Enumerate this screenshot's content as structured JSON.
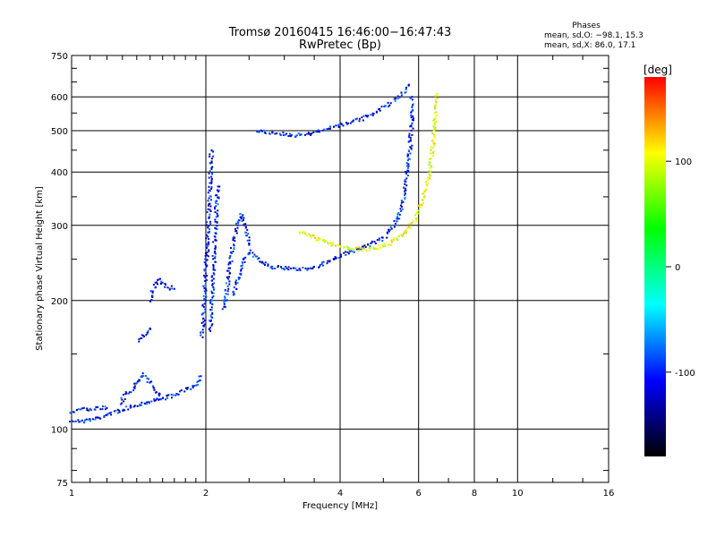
{
  "chart_data": {
    "type": "scatter",
    "title": "Tromsø 20160415 16:46:00−16:47:43",
    "subtitle": "RwPretec (Bp)",
    "xlabel": "Frequency [MHz]",
    "ylabel": "Stationary phase Virtual Height [km]",
    "x_scale": "log",
    "y_scale": "log",
    "xlim": [
      1,
      16
    ],
    "ylim": [
      75,
      750
    ],
    "x_ticks": [
      1,
      2,
      4,
      6,
      8,
      10,
      16
    ],
    "y_ticks": [
      75,
      100,
      200,
      300,
      400,
      500,
      600,
      750
    ],
    "grid": true,
    "phases_box": {
      "heading": "Phases",
      "line_o": "mean, sd,O: −98.1, 15.3",
      "line_x": "mean, sd,X: 86.0, 17.1"
    },
    "colorbar": {
      "label": "[deg]",
      "range": [
        -180,
        180
      ],
      "ticks": [
        100,
        0,
        -100
      ],
      "colors": [
        "#ff0000",
        "#ffff00",
        "#00ff00",
        "#00ffff",
        "#0000ff",
        "#000000"
      ]
    },
    "series": [
      {
        "phase_deg": -100,
        "segments": [
          [
            [
              1.0,
              105
            ],
            [
              1.05,
              104
            ],
            [
              1.1,
              105
            ],
            [
              1.15,
              106
            ],
            [
              1.2,
              108
            ],
            [
              1.3,
              111
            ],
            [
              1.4,
              114
            ],
            [
              1.5,
              116
            ],
            [
              1.6,
              118
            ],
            [
              1.7,
              120
            ],
            [
              1.8,
              123
            ],
            [
              1.9,
              127
            ],
            [
              1.95,
              133
            ]
          ],
          [
            [
              1.0,
              110
            ],
            [
              1.05,
              111
            ],
            [
              1.1,
              111
            ],
            [
              1.15,
              112
            ],
            [
              1.2,
              112
            ]
          ],
          [
            [
              1.28,
              115
            ],
            [
              1.32,
              120
            ],
            [
              1.38,
              125
            ],
            [
              1.42,
              130
            ],
            [
              1.45,
              135
            ],
            [
              1.5,
              128
            ],
            [
              1.55,
              122
            ],
            [
              1.6,
              118
            ]
          ],
          [
            [
              1.42,
              160
            ],
            [
              1.45,
              165
            ],
            [
              1.48,
              170
            ],
            [
              1.5,
              172
            ]
          ],
          [
            [
              1.5,
              200
            ],
            [
              1.52,
              212
            ],
            [
              1.55,
              220
            ],
            [
              1.58,
              225
            ],
            [
              1.6,
              218
            ],
            [
              1.65,
              215
            ],
            [
              1.7,
              213
            ]
          ],
          [
            [
              1.96,
              165
            ],
            [
              1.98,
              190
            ],
            [
              2.0,
              230
            ],
            [
              2.02,
              280
            ],
            [
              2.04,
              340
            ],
            [
              2.05,
              400
            ],
            [
              2.06,
              450
            ]
          ],
          [
            [
              2.05,
              170
            ],
            [
              2.07,
              210
            ],
            [
              2.09,
              260
            ],
            [
              2.11,
              320
            ],
            [
              2.13,
              370
            ]
          ],
          [
            [
              2.2,
              190
            ],
            [
              2.25,
              230
            ],
            [
              2.3,
              270
            ],
            [
              2.35,
              300
            ],
            [
              2.4,
              320
            ],
            [
              2.45,
              300
            ],
            [
              2.5,
              270
            ]
          ],
          [
            [
              2.3,
              205
            ],
            [
              2.4,
              240
            ],
            [
              2.5,
              260
            ],
            [
              2.6,
              250
            ],
            [
              2.7,
              245
            ],
            [
              2.8,
              240
            ],
            [
              3.0,
              238
            ],
            [
              3.2,
              237
            ],
            [
              3.4,
              238
            ],
            [
              3.6,
              242
            ],
            [
              3.8,
              248
            ],
            [
              4.0,
              255
            ],
            [
              4.3,
              262
            ],
            [
              4.6,
              268
            ],
            [
              5.0,
              280
            ],
            [
              5.3,
              300
            ],
            [
              5.5,
              330
            ],
            [
              5.6,
              370
            ],
            [
              5.7,
              420
            ],
            [
              5.75,
              470
            ],
            [
              5.8,
              530
            ],
            [
              5.8,
              600
            ]
          ],
          [
            [
              2.6,
              500
            ],
            [
              2.8,
              495
            ],
            [
              3.0,
              490
            ],
            [
              3.2,
              488
            ],
            [
              3.4,
              490
            ],
            [
              3.6,
              500
            ],
            [
              3.8,
              505
            ]
          ],
          [
            [
              3.8,
              510
            ],
            [
              4.2,
              520
            ],
            [
              4.6,
              540
            ],
            [
              4.9,
              560
            ],
            [
              5.2,
              580
            ]
          ],
          [
            [
              5.3,
              590
            ],
            [
              5.5,
              610
            ],
            [
              5.6,
              625
            ],
            [
              5.7,
              640
            ]
          ]
        ]
      },
      {
        "phase_deg": 90,
        "segments": [
          [
            [
              3.25,
              290
            ],
            [
              3.4,
              285
            ],
            [
              3.6,
              278
            ],
            [
              3.8,
              272
            ],
            [
              4.0,
              268
            ],
            [
              4.2,
              265
            ],
            [
              4.5,
              263
            ],
            [
              4.8,
              265
            ],
            [
              5.1,
              270
            ],
            [
              5.4,
              280
            ],
            [
              5.7,
              295
            ],
            [
              5.9,
              310
            ],
            [
              6.1,
              340
            ],
            [
              6.25,
              370
            ],
            [
              6.35,
              400
            ],
            [
              6.45,
              450
            ],
            [
              6.5,
              500
            ],
            [
              6.55,
              560
            ],
            [
              6.6,
              610
            ]
          ]
        ]
      }
    ]
  }
}
